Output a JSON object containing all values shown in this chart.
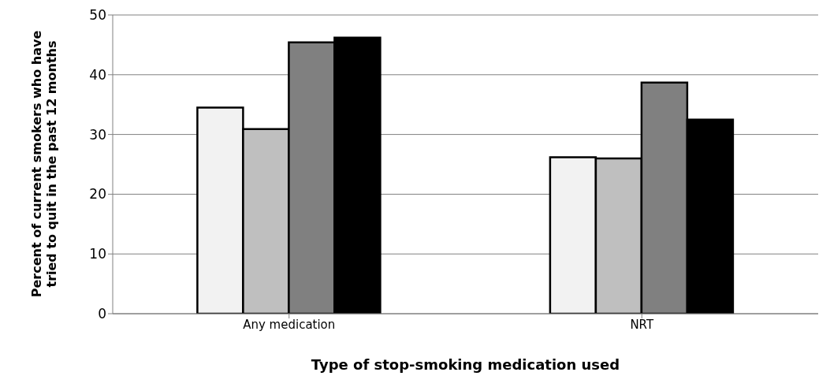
{
  "chart_data": {
    "type": "bar",
    "xlabel": "Type of stop-smoking medication used",
    "ylabel": "Percent of current smokers who have tried to quit in the past 12 months",
    "categories": [
      "Any medication",
      "NRT"
    ],
    "series": [
      {
        "color": "#f2f2f2",
        "values": [
          34.5,
          26.2
        ]
      },
      {
        "color": "#bfbfbf",
        "values": [
          30.9,
          26.0
        ]
      },
      {
        "color": "#808080",
        "values": [
          45.4,
          38.7
        ]
      },
      {
        "color": "#000000",
        "values": [
          46.2,
          32.5
        ]
      }
    ],
    "ylim": [
      0,
      50
    ],
    "yticks": [
      0,
      10,
      20,
      30,
      40,
      50
    ],
    "grid": "y",
    "legend": false
  }
}
